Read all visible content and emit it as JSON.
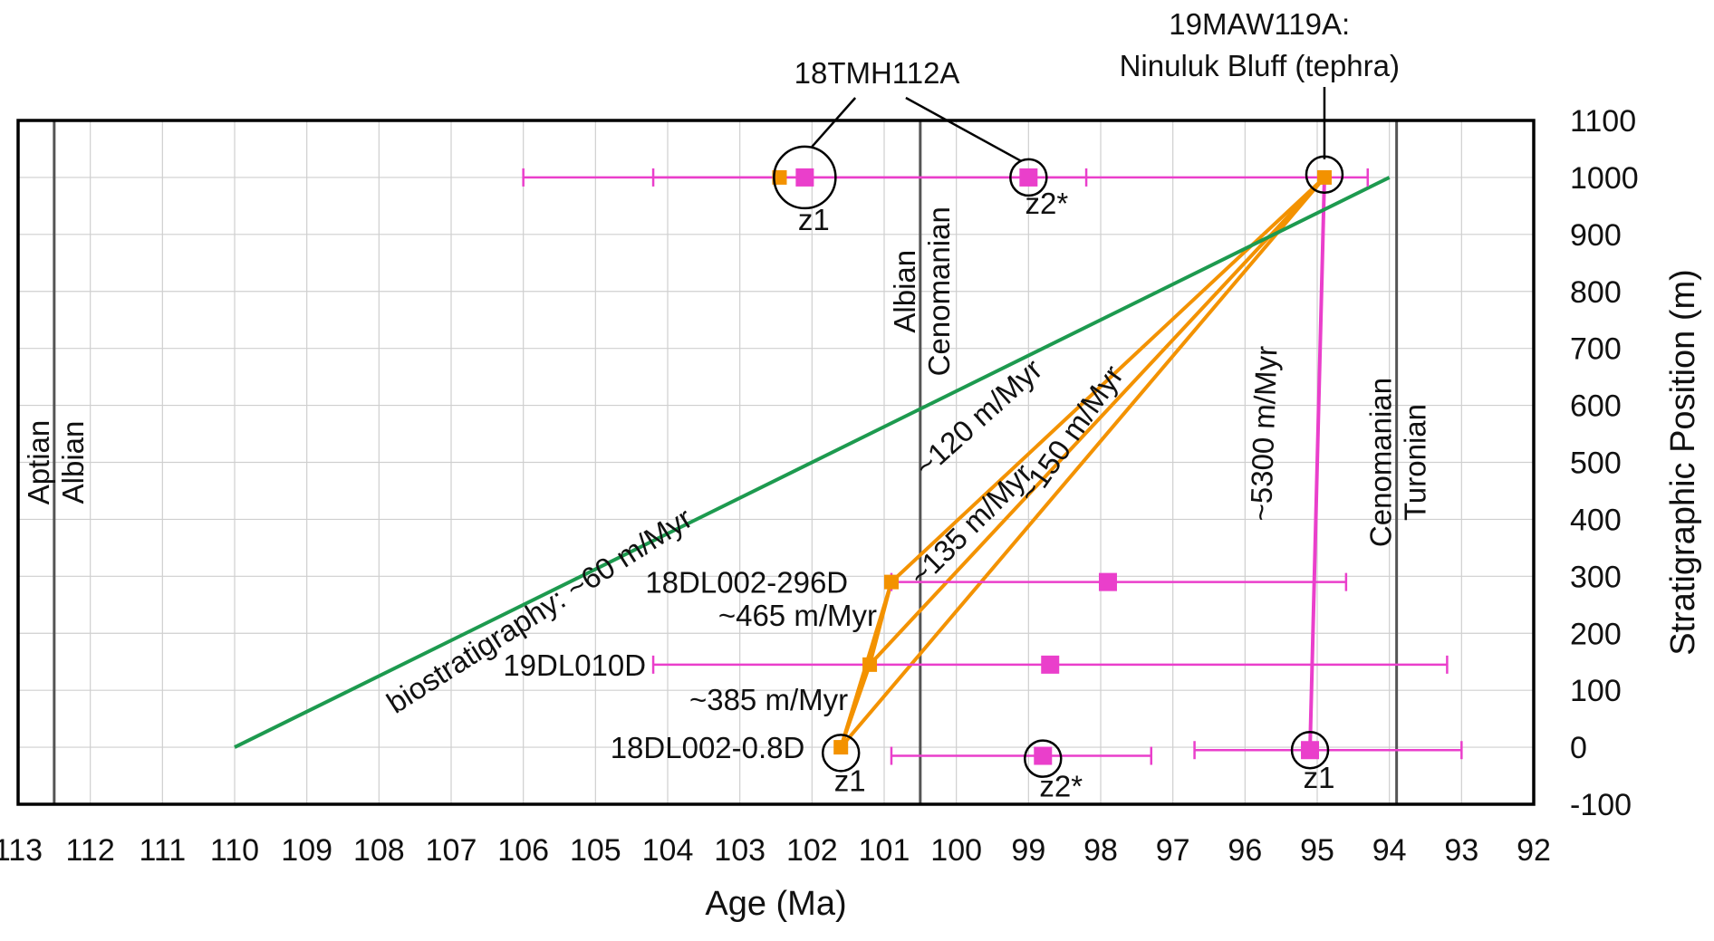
{
  "chart_data": {
    "type": "scatter",
    "xlabel": "Age (Ma)",
    "ylabel": "Stratigraphic Position (m)",
    "x_reversed": true,
    "xlim": [
      113,
      92
    ],
    "ylim": [
      -100,
      1100
    ],
    "x_ticks": [
      "113",
      "112",
      "111",
      "110",
      "109",
      "108",
      "107",
      "106",
      "105",
      "104",
      "103",
      "102",
      "101",
      "100",
      "99",
      "98",
      "97",
      "96",
      "95",
      "94",
      "93",
      "92"
    ],
    "y_ticks": [
      "1100",
      "1000",
      "900",
      "800",
      "700",
      "600",
      "500",
      "400",
      "300",
      "200",
      "100",
      "0",
      "-100"
    ],
    "grid": true,
    "colors": {
      "orange": "#f39200",
      "magenta": "#ea3fcb",
      "green": "#1d9a4f",
      "boundary": "#555555",
      "grid": "#cfcfcf",
      "frame": "#000000"
    },
    "stage_boundaries": [
      {
        "age": 112.5,
        "older": "Aptian",
        "younger": "Albian"
      },
      {
        "age": 100.5,
        "older": "Albian",
        "younger": "Cenomanian"
      },
      {
        "age": 93.9,
        "older": "Cenomanian",
        "younger": "Turonian"
      }
    ],
    "samples": [
      {
        "label": "18TMH112A",
        "position": 1000
      },
      {
        "label": "19MAW119A: Ninuluk Bluff (tephra)",
        "position": 1000
      },
      {
        "label": "18DL002-296D",
        "position": 290
      },
      {
        "label": "19DL010D",
        "position": 145
      },
      {
        "label": "18DL002-0.8D",
        "position": 0
      }
    ],
    "orange_points": [
      {
        "age": 102.45,
        "position": 1000
      },
      {
        "age": 94.9,
        "position": 1000
      },
      {
        "age": 100.9,
        "position": 290
      },
      {
        "age": 101.2,
        "position": 145
      },
      {
        "age": 101.6,
        "position": 0
      }
    ],
    "magenta_points": [
      {
        "age": 102.1,
        "position": 1000,
        "err": [
          106.0,
          94.3
        ]
      },
      {
        "age": 99.0,
        "position": 1000,
        "err": [
          104.2,
          98.2
        ]
      },
      {
        "age": 97.9,
        "position": 290,
        "err": [
          100.9,
          94.6
        ]
      },
      {
        "age": 98.7,
        "position": 145,
        "err": [
          104.2,
          93.2
        ]
      },
      {
        "age": 98.8,
        "position": -15,
        "err": [
          100.9,
          97.3
        ]
      },
      {
        "age": 95.1,
        "position": -5,
        "err": [
          96.7,
          93.0
        ]
      }
    ],
    "circled_points": [
      {
        "age": 102.1,
        "position": 1000,
        "label": "z1"
      },
      {
        "age": 99.0,
        "position": 1000,
        "label": "z2*"
      },
      {
        "age": 94.9,
        "position": 1005,
        "label": ""
      },
      {
        "age": 101.6,
        "position": -10,
        "label": "z1"
      },
      {
        "age": 98.8,
        "position": -20,
        "label": "z2*"
      },
      {
        "age": 95.1,
        "position": -5,
        "label": "z1"
      }
    ],
    "rate_lines": [
      {
        "color": "orange",
        "points": [
          [
            101.6,
            0
          ],
          [
            101.2,
            145
          ],
          [
            100.9,
            290
          ],
          [
            94.9,
            1000
          ]
        ]
      },
      {
        "color": "orange",
        "points": [
          [
            101.2,
            145
          ],
          [
            94.9,
            1000
          ]
        ]
      },
      {
        "color": "orange",
        "points": [
          [
            101.6,
            0
          ],
          [
            94.9,
            1000
          ]
        ]
      },
      {
        "color": "orange",
        "points": [
          [
            101.6,
            0
          ],
          [
            100.9,
            290
          ]
        ]
      },
      {
        "color": "magenta",
        "points": [
          [
            95.1,
            -5
          ],
          [
            94.9,
            1000
          ]
        ]
      },
      {
        "color": "green",
        "points": [
          [
            110,
            0
          ],
          [
            94,
            1000
          ]
        ]
      }
    ],
    "annotations": [
      {
        "text": "biostratigraphy: ~60 m/Myr",
        "rotate": true
      },
      {
        "text": "~120 m/Myr",
        "rotate": true
      },
      {
        "text": "~135 m/Myr",
        "rotate": true
      },
      {
        "text": "~150 m/Myr",
        "rotate": true
      },
      {
        "text": "~5300 m/Myr",
        "rotate": true
      },
      {
        "text": "~465 m/Myr",
        "rotate": false
      },
      {
        "text": "~385 m/Myr",
        "rotate": false
      }
    ]
  }
}
